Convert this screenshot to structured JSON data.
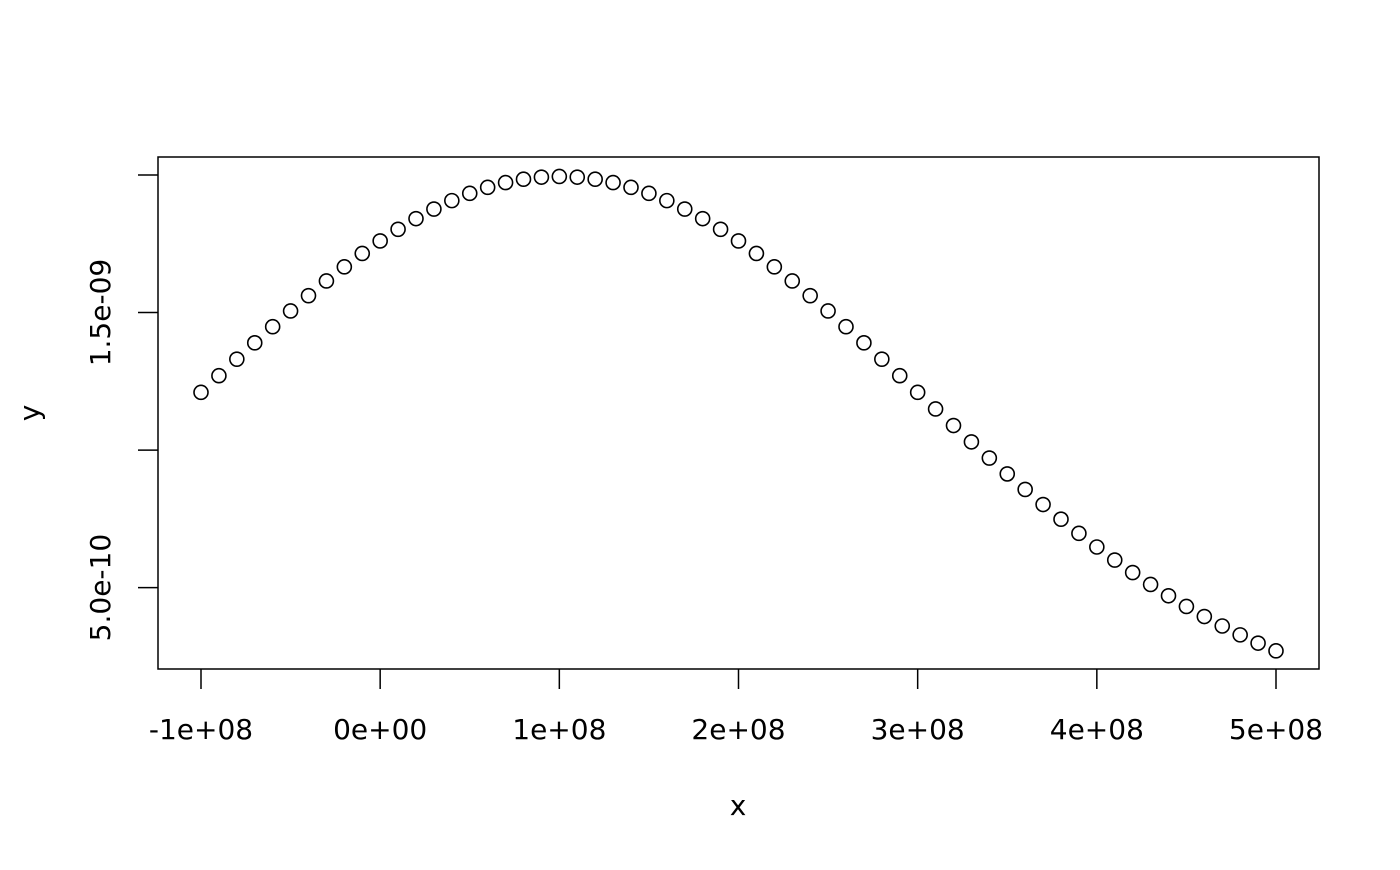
{
  "chart_data": {
    "type": "scatter",
    "xlabel": "x",
    "ylabel": "y",
    "x": [
      -100000000.0,
      -90000000.0,
      -80000000.0,
      -70000000.0,
      -60000000.0,
      -50000000.0,
      -40000000.0,
      -30000000.0,
      -20000000.0,
      -10000000.0,
      0,
      10000000.0,
      20000000.0,
      30000000.0,
      40000000.0,
      50000000.0,
      60000000.0,
      70000000.0,
      80000000.0,
      90000000.0,
      100000000.0,
      110000000.0,
      120000000.0,
      130000000.0,
      140000000.0,
      150000000.0,
      160000000.0,
      170000000.0,
      180000000.0,
      190000000.0,
      200000000.0,
      210000000.0,
      220000000.0,
      230000000.0,
      240000000.0,
      250000000.0,
      260000000.0,
      270000000.0,
      280000000.0,
      290000000.0,
      300000000.0,
      310000000.0,
      320000000.0,
      330000000.0,
      340000000.0,
      350000000.0,
      360000000.0,
      370000000.0,
      380000000.0,
      390000000.0,
      400000000.0,
      410000000.0,
      420000000.0,
      430000000.0,
      440000000.0,
      450000000.0,
      460000000.0,
      470000000.0,
      480000000.0,
      490000000.0,
      500000000.0
    ],
    "values": [
      1.2098e-09,
      1.2703e-09,
      1.3304e-09,
      1.3899e-09,
      1.4484e-09,
      1.5057e-09,
      1.5613e-09,
      1.6148e-09,
      1.6661e-09,
      1.7147e-09,
      1.7603e-09,
      1.8026e-09,
      1.8413e-09,
      1.8762e-09,
      1.9069e-09,
      1.9333e-09,
      1.9552e-09,
      1.9724e-09,
      1.9847e-09,
      1.9922e-09,
      1.9947e-09,
      1.9922e-09,
      1.9847e-09,
      1.9724e-09,
      1.9552e-09,
      1.9333e-09,
      1.9069e-09,
      1.8762e-09,
      1.8413e-09,
      1.8026e-09,
      1.7603e-09,
      1.7147e-09,
      1.6661e-09,
      1.6148e-09,
      1.5613e-09,
      1.5057e-09,
      1.4484e-09,
      1.3899e-09,
      1.3304e-09,
      1.2703e-09,
      1.2098e-09,
      1.1494e-09,
      1.0892e-09,
      1.0297e-09,
      9.7092e-10,
      9.1323e-10,
      8.5684e-10,
      8.0191e-10,
      7.4863e-10,
      6.9715e-10,
      6.4758e-10,
      6.0004e-10,
      5.546e-10,
      5.1134e-10,
      4.7025e-10,
      4.3139e-10,
      3.9475e-10,
      3.6032e-10,
      3.2807e-10,
      2.9797e-10,
      2.6996e-10
    ],
    "color": "#000000",
    "xlim": [
      -124000000.0,
      524000000.0
    ],
    "ylim": [
      2.04e-10,
      2.0655e-09
    ],
    "xticks": [
      {
        "value": -100000000.0,
        "label": "-1e+08"
      },
      {
        "value": 0,
        "label": "0e+00"
      },
      {
        "value": 100000000.0,
        "label": "1e+08"
      },
      {
        "value": 200000000.0,
        "label": "2e+08"
      },
      {
        "value": 300000000.0,
        "label": "3e+08"
      },
      {
        "value": 400000000.0,
        "label": "4e+08"
      },
      {
        "value": 500000000.0,
        "label": "5e+08"
      }
    ],
    "yticks": [
      {
        "value": 5e-10,
        "label": "5.0e-10"
      },
      {
        "value": 1e-09,
        "label": null
      },
      {
        "value": 1.5e-09,
        "label": "1.5e-09"
      },
      {
        "value": 2e-09,
        "label": null
      }
    ],
    "grid": false
  }
}
